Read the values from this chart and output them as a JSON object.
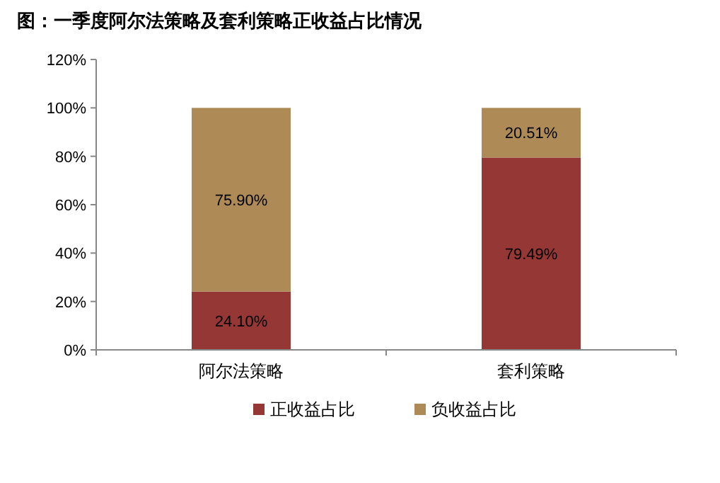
{
  "chart_data": {
    "type": "bar",
    "title": "图：一季度阿尔法策略及套利策略正收益占比情况",
    "stacked": true,
    "categories": [
      "阿尔法策略",
      "套利策略"
    ],
    "series": [
      {
        "name": "正收益占比",
        "color": "#953735",
        "values": [
          24.1,
          79.49
        ],
        "value_labels": [
          "24.10%",
          "79.49%"
        ]
      },
      {
        "name": "负收益占比",
        "color": "#ad8a56",
        "values": [
          75.9,
          20.51
        ],
        "value_labels": [
          "75.90%",
          "20.51%"
        ]
      }
    ],
    "ylim": [
      0,
      120
    ],
    "yticks": [
      {
        "value": 0,
        "label": "0%"
      },
      {
        "value": 20,
        "label": "20%"
      },
      {
        "value": 40,
        "label": "40%"
      },
      {
        "value": 60,
        "label": "60%"
      },
      {
        "value": 80,
        "label": "80%"
      },
      {
        "value": 100,
        "label": "100%"
      },
      {
        "value": 120,
        "label": "120%"
      }
    ],
    "grid": false,
    "legend": "bottom"
  }
}
